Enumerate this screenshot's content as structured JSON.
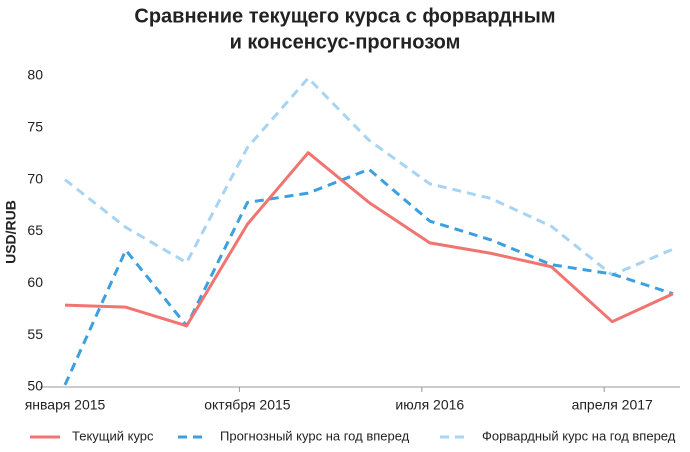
{
  "chart_data": {
    "type": "line",
    "title": [
      "Сравнение текущего курса с форвардным",
      "и консенсус-прогнозом"
    ],
    "y_label": "USD/RUB",
    "categories": [
      "января 2015",
      null,
      null,
      "октября 2015",
      null,
      null,
      "июля 2016",
      null,
      null,
      "апреля 2017",
      null
    ],
    "series": [
      {
        "name": "Текущий курс",
        "color": "#f07470",
        "line_style": "solid",
        "values": [
          57.9,
          57.7,
          55.9,
          65.7,
          72.6,
          67.8,
          63.9,
          62.9,
          61.6,
          56.3,
          59.0
        ]
      },
      {
        "name": "Прогнозный курс на год вперед",
        "color": "#3c9fe0",
        "line_style": "dashed",
        "values": [
          50.2,
          63.2,
          55.9,
          67.8,
          68.7,
          71.0,
          66.0,
          64.2,
          61.8,
          60.9,
          59.0
        ]
      },
      {
        "name": "Форвардный курс на год вперед",
        "color": "#a8d4f4",
        "line_style": "dashed",
        "values": [
          70.0,
          65.4,
          62.0,
          73.1,
          79.8,
          73.8,
          69.6,
          68.2,
          65.5,
          60.8,
          63.3
        ]
      }
    ],
    "ylim": [
      50,
      80
    ],
    "yticks": [
      50,
      55,
      60,
      65,
      70,
      75,
      80
    ],
    "grid": false
  }
}
